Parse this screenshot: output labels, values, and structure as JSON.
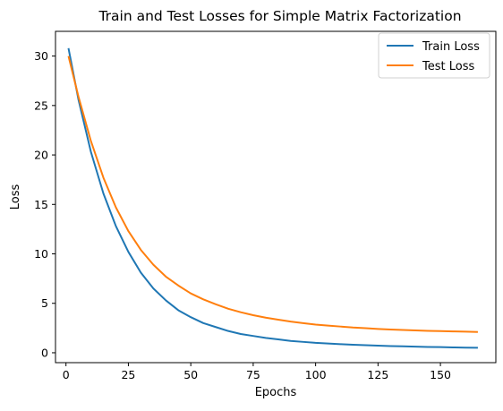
{
  "chart_data": {
    "type": "line",
    "title": "Train and Test Losses for Simple Matrix Factorization",
    "xlabel": "Epochs",
    "ylabel": "Loss",
    "xlim": [
      -4.2,
      172.2
    ],
    "ylim": [
      -1.0,
      32.5
    ],
    "xticks": [
      0,
      25,
      50,
      75,
      100,
      125,
      150
    ],
    "yticks": [
      0,
      5,
      10,
      15,
      20,
      25,
      30
    ],
    "grid": false,
    "legend_position": "top-right",
    "series": [
      {
        "name": "Train Loss",
        "color": "#1f77b4",
        "x": [
          1,
          5,
          10,
          15,
          20,
          25,
          30,
          35,
          40,
          45,
          50,
          55,
          60,
          65,
          70,
          75,
          80,
          85,
          90,
          95,
          100,
          105,
          110,
          115,
          120,
          125,
          130,
          135,
          140,
          145,
          150,
          155,
          160,
          165
        ],
        "y": [
          30.8,
          25.6,
          20.3,
          16.1,
          12.8,
          10.2,
          8.1,
          6.5,
          5.3,
          4.3,
          3.6,
          3.0,
          2.6,
          2.2,
          1.9,
          1.7,
          1.5,
          1.35,
          1.2,
          1.1,
          1.0,
          0.93,
          0.87,
          0.81,
          0.76,
          0.72,
          0.68,
          0.65,
          0.62,
          0.59,
          0.57,
          0.54,
          0.52,
          0.5
        ]
      },
      {
        "name": "Test Loss",
        "color": "#ff7f0e",
        "x": [
          1,
          5,
          10,
          15,
          20,
          25,
          30,
          35,
          40,
          45,
          50,
          55,
          60,
          65,
          70,
          75,
          80,
          85,
          90,
          95,
          100,
          105,
          110,
          115,
          120,
          125,
          130,
          135,
          140,
          145,
          150,
          155,
          160,
          165
        ],
        "y": [
          30.0,
          25.9,
          21.4,
          17.7,
          14.7,
          12.3,
          10.4,
          8.9,
          7.7,
          6.8,
          6.0,
          5.4,
          4.9,
          4.45,
          4.1,
          3.8,
          3.55,
          3.35,
          3.15,
          3.0,
          2.85,
          2.75,
          2.65,
          2.55,
          2.48,
          2.41,
          2.35,
          2.3,
          2.26,
          2.22,
          2.19,
          2.16,
          2.13,
          2.1
        ]
      }
    ]
  }
}
